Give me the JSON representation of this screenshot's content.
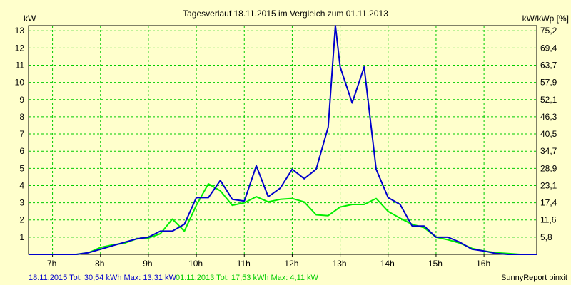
{
  "chart_data": {
    "type": "line",
    "title": "Tagesverlauf 18.11.2015 im Vergleich zum 01.11.2013",
    "ylabel_left": "kW",
    "ylabel_right": "kW/kWp [%]",
    "x_ticks": [
      "7h",
      "8h",
      "9h",
      "10h",
      "11h",
      "12h",
      "13h",
      "14h",
      "15h",
      "16h"
    ],
    "y_ticks_left": [
      "1",
      "2",
      "3",
      "4",
      "5",
      "6",
      "7",
      "8",
      "9",
      "10",
      "11",
      "12",
      "13"
    ],
    "y_ticks_right": [
      "5,8",
      "11,6",
      "17,4",
      "23,1",
      "28,9",
      "34,7",
      "40,5",
      "46,3",
      "52,1",
      "57,9",
      "63,7",
      "69,4",
      "75,2"
    ],
    "xlim": [
      6.5,
      17.1
    ],
    "ylim": [
      0,
      13.3
    ],
    "grid": true,
    "series": [
      {
        "name": "18.11.2015",
        "color": "#0000cc",
        "x": [
          6.5,
          7.0,
          7.25,
          7.5,
          7.75,
          8.0,
          8.25,
          8.5,
          8.75,
          9.0,
          9.25,
          9.5,
          9.75,
          10.0,
          10.25,
          10.5,
          10.75,
          11.0,
          11.25,
          11.5,
          11.75,
          12.0,
          12.25,
          12.5,
          12.75,
          12.9,
          13.0,
          13.25,
          13.5,
          13.75,
          14.0,
          14.25,
          14.5,
          14.75,
          15.0,
          15.25,
          15.5,
          15.75,
          16.0,
          16.25,
          16.5,
          16.75,
          17.1
        ],
        "y": [
          0,
          0,
          0,
          0,
          0.1,
          0.3,
          0.5,
          0.7,
          0.9,
          1.0,
          1.35,
          1.35,
          1.75,
          3.3,
          3.3,
          4.3,
          3.2,
          3.1,
          5.15,
          3.35,
          3.85,
          4.95,
          4.4,
          4.95,
          7.4,
          13.3,
          10.9,
          8.8,
          10.9,
          4.95,
          3.3,
          2.9,
          1.65,
          1.65,
          1.0,
          1.0,
          0.7,
          0.3,
          0.2,
          0.05,
          0,
          0,
          0
        ]
      },
      {
        "name": "01.11.2013",
        "color": "#00ee00",
        "x": [
          6.5,
          7.0,
          7.25,
          7.5,
          7.75,
          8.0,
          8.25,
          8.5,
          8.75,
          9.0,
          9.25,
          9.5,
          9.75,
          10.0,
          10.25,
          10.5,
          10.75,
          11.0,
          11.25,
          11.5,
          11.75,
          12.0,
          12.25,
          12.5,
          12.75,
          13.0,
          13.25,
          13.5,
          13.75,
          14.0,
          14.25,
          14.5,
          14.75,
          15.0,
          15.25,
          15.5,
          15.75,
          16.0,
          16.25,
          16.5,
          16.75,
          17.1
        ],
        "y": [
          0,
          0,
          0,
          0,
          0.1,
          0.4,
          0.55,
          0.65,
          0.9,
          0.95,
          1.2,
          2.05,
          1.35,
          2.85,
          4.1,
          3.7,
          2.85,
          3.0,
          3.35,
          3.05,
          3.2,
          3.25,
          3.05,
          2.3,
          2.25,
          2.75,
          2.9,
          2.9,
          3.25,
          2.5,
          2.1,
          1.75,
          1.55,
          1.0,
          0.85,
          0.65,
          0.35,
          0.2,
          0.1,
          0.05,
          0,
          0
        ]
      }
    ]
  },
  "footer": {
    "legend1": "18.11.2015 Tot: 30,54 kWh Max: 13,31 kW",
    "legend2": "01.11.2013 Tot: 17,53 kWh Max: 4,11 kW",
    "brand": "SunnyReport pinxit"
  }
}
